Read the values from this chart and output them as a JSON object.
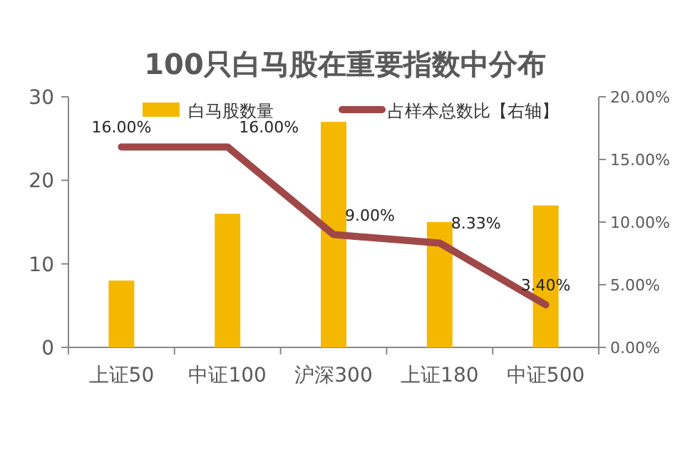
{
  "chart_data": {
    "type": "bar",
    "title": "100只白马股在重要指数中分布",
    "categories": [
      "上证50",
      "中证100",
      "沪深300",
      "上证180",
      "中证500"
    ],
    "series": [
      {
        "name": "白马股数量",
        "color": "#f5b800",
        "values": [
          8,
          16,
          27,
          15,
          17
        ]
      },
      {
        "name": "占样本总数比【右轴】",
        "type": "line",
        "axis": "y2",
        "color": "#a04848",
        "values": [
          16,
          16,
          9,
          8.33,
          3.4
        ],
        "value_labels": [
          "16.00%",
          "16.00%",
          "9.00%",
          "8.33%",
          "3.40%"
        ]
      }
    ],
    "ylim": [
      0,
      30
    ],
    "yticks": [
      0,
      10,
      20,
      30
    ],
    "y2lim": [
      0,
      20
    ],
    "y2ticks": [
      {
        "value": 0,
        "label": "0.00%"
      },
      {
        "value": 5,
        "label": "5.00%"
      },
      {
        "value": 10,
        "label": "10.00%"
      },
      {
        "value": 15,
        "label": "15.00%"
      },
      {
        "value": 20,
        "label": "20.00%"
      }
    ],
    "legend": "top",
    "grid": false
  }
}
